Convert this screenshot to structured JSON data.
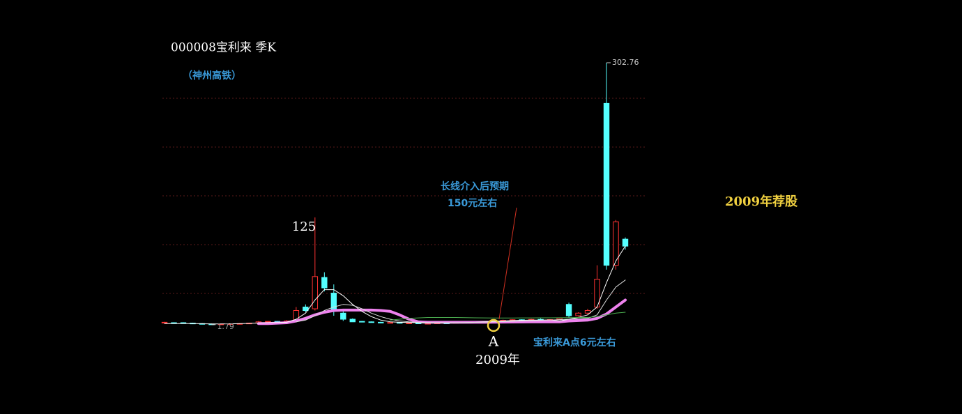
{
  "chart_data": {
    "type": "candlestick",
    "title": "000008宝利来  季K",
    "subtitle": "（神州高铁）",
    "ylim": [
      0,
      334.8
    ],
    "up_color": "#ff3232",
    "down_color": "#54ffff",
    "open": [
      4,
      4,
      4,
      3.5,
      3,
      2.5,
      2,
      2.5,
      2.8,
      3,
      3.5,
      5,
      5.5,
      5,
      6,
      22,
      20,
      56,
      38,
      15,
      8,
      5.5,
      5,
      4.5,
      4,
      4.2,
      3.5,
      3.6,
      3,
      3.2,
      3.6,
      3.5,
      4.2,
      4.5,
      5.2,
      5.6,
      6,
      6.8,
      7.4,
      7,
      7.8,
      7.2,
      7.6,
      25,
      12,
      15,
      22,
      256,
      70,
      100
    ],
    "high": [
      5,
      4.5,
      4.5,
      4,
      3.5,
      3,
      3,
      3.2,
      3.5,
      4,
      6,
      6,
      6,
      7,
      22,
      25,
      125,
      62,
      48,
      18,
      9,
      6,
      5.5,
      5,
      4.5,
      4.5,
      4,
      3.8,
      3.5,
      4,
      4,
      4.5,
      5,
      6,
      6,
      7,
      7.5,
      8,
      8,
      8.5,
      9,
      8,
      10,
      27,
      16,
      20,
      70,
      302.76,
      122,
      102
    ],
    "low": [
      3.5,
      3,
      3,
      2.5,
      2,
      1.79,
      2,
      2.3,
      2.5,
      3,
      3.5,
      4.5,
      4.5,
      5,
      6,
      16,
      18,
      40,
      12,
      6,
      5,
      4.5,
      4,
      3.5,
      3.5,
      3,
      3,
      2.8,
      2.7,
      3,
      3.2,
      3.3,
      3.8,
      4.3,
      5,
      5,
      5.8,
      6.5,
      6.8,
      6.8,
      7,
      6.8,
      7.2,
      10,
      11,
      14,
      20,
      65,
      65,
      88
    ],
    "close": [
      4.5,
      3.5,
      3.5,
      3,
      2.5,
      2,
      2.5,
      2.8,
      3,
      3.5,
      5,
      5.5,
      5,
      6,
      18,
      18,
      57,
      44,
      18,
      8,
      5,
      5,
      4.5,
      4,
      4.2,
      3.5,
      3.6,
      3,
      3.2,
      3.6,
      3.5,
      4.2,
      4.5,
      5.2,
      5.6,
      6,
      6.8,
      7.4,
      7,
      7.8,
      7.2,
      7.6,
      9,
      12,
      15,
      18,
      54,
      70,
      120,
      92
    ],
    "lines": [
      {
        "color": "#ee82ee",
        "width": 4,
        "values": [
          null,
          null,
          null,
          null,
          null,
          null,
          null,
          null,
          null,
          null,
          3,
          3,
          3.5,
          4,
          6,
          9,
          13,
          16,
          18,
          18.5,
          18.5,
          18.5,
          18.5,
          18,
          17,
          13,
          8,
          5,
          4.5,
          4.5,
          4.5,
          4.5,
          4.5,
          4.5,
          4.5,
          4.6,
          4.7,
          4.8,
          4.9,
          5,
          5,
          5,
          5,
          6,
          6.5,
          7,
          9,
          14,
          22,
          30
        ]
      },
      {
        "color": "#ffffff",
        "width": 1,
        "values": [
          3,
          3,
          3,
          3,
          2.8,
          2.6,
          2.6,
          2.7,
          2.9,
          3.2,
          3.6,
          4,
          4.2,
          4.5,
          8,
          15,
          30,
          42,
          42,
          35,
          25,
          17,
          11,
          7,
          5,
          4.5,
          4.2,
          4,
          3.8,
          3.6,
          3.6,
          3.8,
          4,
          4.4,
          5,
          5.5,
          6,
          6.5,
          6.8,
          7,
          7,
          7.2,
          6,
          8,
          10,
          13,
          22,
          50,
          75,
          92
        ]
      },
      {
        "color": "#dddddd",
        "width": 1,
        "values": [
          null,
          null,
          null,
          null,
          null,
          null,
          null,
          null,
          null,
          null,
          null,
          null,
          null,
          null,
          5,
          7,
          12,
          18,
          22,
          25,
          24,
          20,
          15,
          11,
          8,
          6,
          5,
          4.5,
          4.2,
          4,
          4,
          4,
          4.2,
          4.4,
          4.6,
          5,
          5.3,
          5.6,
          6,
          6.3,
          6.6,
          7,
          7.5,
          8,
          8.5,
          9,
          13,
          30,
          45,
          53
        ]
      },
      {
        "color": "#4caf50",
        "width": 1,
        "values": [
          null,
          null,
          null,
          null,
          null,
          null,
          null,
          null,
          null,
          null,
          null,
          null,
          null,
          null,
          null,
          null,
          null,
          null,
          null,
          null,
          null,
          null,
          null,
          null,
          7,
          8,
          9,
          9.5,
          10,
          10,
          10,
          10,
          9.8,
          9.6,
          9.5,
          9.4,
          9.4,
          9.4,
          9.5,
          9.5,
          9.6,
          9.6,
          9.7,
          9.8,
          10,
          10,
          11,
          13,
          15,
          16
        ]
      }
    ],
    "annotations": [
      "125",
      "长线介入后预期",
      "150元左右",
      "2009年荐股",
      "A",
      "2009年",
      "宝利来A点6元左右"
    ]
  }
}
